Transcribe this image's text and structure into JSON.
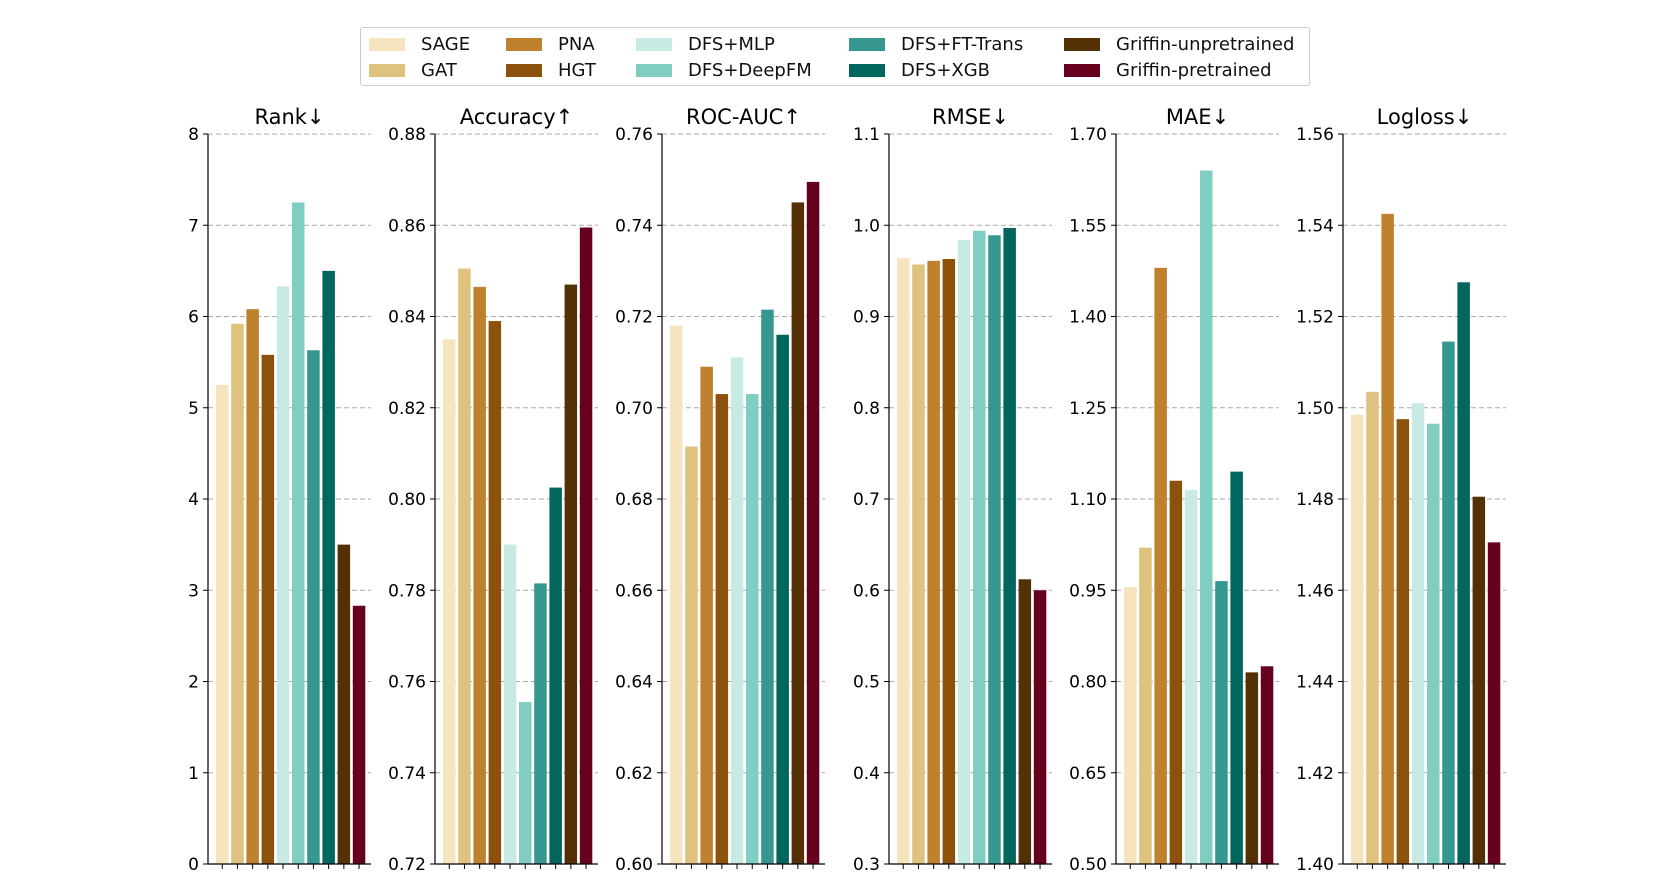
{
  "legend": {
    "items": [
      {
        "label": "SAGE",
        "color": "#f5e4bd"
      },
      {
        "label": "GAT",
        "color": "#dfc27d"
      },
      {
        "label": "PNA",
        "color": "#bf812d"
      },
      {
        "label": "HGT",
        "color": "#8c510a"
      },
      {
        "label": "DFS+MLP",
        "color": "#c7eae5"
      },
      {
        "label": "DFS+DeepFM",
        "color": "#80cdc1"
      },
      {
        "label": "DFS+FT-Trans",
        "color": "#35978f"
      },
      {
        "label": "DFS+XGB",
        "color": "#01665e"
      },
      {
        "label": "Griffin-unpretrained",
        "color": "#543005"
      },
      {
        "label": "Griffin-pretrained",
        "color": "#67001f"
      }
    ]
  },
  "chart_data": [
    {
      "type": "bar",
      "title": "Rank↓",
      "ylim": [
        0,
        8
      ],
      "ticks": [
        "0",
        "1",
        "2",
        "3",
        "4",
        "5",
        "6",
        "7",
        "8"
      ],
      "categories": [
        "SAGE",
        "GAT",
        "PNA",
        "HGT",
        "DFS+MLP",
        "DFS+DeepFM",
        "DFS+FT-Trans",
        "DFS+XGB",
        "Griffin-unpretrained",
        "Griffin-pretrained"
      ],
      "values": [
        5.25,
        5.92,
        6.08,
        5.58,
        6.33,
        7.25,
        5.63,
        6.5,
        3.5,
        2.83
      ]
    },
    {
      "type": "bar",
      "title": "Accuracy↑",
      "ylim": [
        0.72,
        0.88
      ],
      "ticks": [
        "0.72",
        "0.74",
        "0.76",
        "0.78",
        "0.80",
        "0.82",
        "0.84",
        "0.86",
        "0.88"
      ],
      "categories": [
        "SAGE",
        "GAT",
        "PNA",
        "HGT",
        "DFS+MLP",
        "DFS+DeepFM",
        "DFS+FT-Trans",
        "DFS+XGB",
        "Griffin-unpretrained",
        "Griffin-pretrained"
      ],
      "values": [
        0.835,
        0.8505,
        0.8465,
        0.839,
        0.79,
        0.7555,
        0.7815,
        0.8025,
        0.847,
        0.8595
      ]
    },
    {
      "type": "bar",
      "title": "ROC-AUC↑",
      "ylim": [
        0.6,
        0.76
      ],
      "ticks": [
        "0.60",
        "0.62",
        "0.64",
        "0.66",
        "0.68",
        "0.70",
        "0.72",
        "0.74",
        "0.76"
      ],
      "categories": [
        "SAGE",
        "GAT",
        "PNA",
        "HGT",
        "DFS+MLP",
        "DFS+DeepFM",
        "DFS+FT-Trans",
        "DFS+XGB",
        "Griffin-unpretrained",
        "Griffin-pretrained"
      ],
      "values": [
        0.718,
        0.6915,
        0.709,
        0.703,
        0.711,
        0.703,
        0.7215,
        0.716,
        0.745,
        0.7495
      ]
    },
    {
      "type": "bar",
      "title": "RMSE↓",
      "ylim": [
        0.3,
        1.1
      ],
      "ticks": [
        "0.3",
        "0.4",
        "0.5",
        "0.6",
        "0.7",
        "0.8",
        "0.9",
        "1.0",
        "1.1"
      ],
      "categories": [
        "SAGE",
        "GAT",
        "PNA",
        "HGT",
        "DFS+MLP",
        "DFS+DeepFM",
        "DFS+FT-Trans",
        "DFS+XGB",
        "Griffin-unpretrained",
        "Griffin-pretrained"
      ],
      "values": [
        0.964,
        0.957,
        0.961,
        0.963,
        0.984,
        0.994,
        0.989,
        0.997,
        0.612,
        0.6
      ]
    },
    {
      "type": "bar",
      "title": "MAE↓",
      "ylim": [
        0.5,
        1.7
      ],
      "ticks": [
        "0.50",
        "0.65",
        "0.80",
        "0.95",
        "1.10",
        "1.25",
        "1.40",
        "1.55",
        "1.70"
      ],
      "categories": [
        "SAGE",
        "GAT",
        "PNA",
        "HGT",
        "DFS+MLP",
        "DFS+DeepFM",
        "DFS+FT-Trans",
        "DFS+XGB",
        "Griffin-unpretrained",
        "Griffin-pretrained"
      ],
      "values": [
        0.955,
        1.02,
        1.48,
        1.13,
        1.115,
        1.64,
        0.965,
        1.145,
        0.815,
        0.825
      ]
    },
    {
      "type": "bar",
      "title": "Logloss↓",
      "ylim": [
        1.4,
        1.56
      ],
      "ticks": [
        "1.40",
        "1.42",
        "1.44",
        "1.46",
        "1.48",
        "1.50",
        "1.52",
        "1.54",
        "1.56"
      ],
      "categories": [
        "SAGE",
        "GAT",
        "PNA",
        "HGT",
        "DFS+MLP",
        "DFS+DeepFM",
        "DFS+FT-Trans",
        "DFS+XGB",
        "Griffin-unpretrained",
        "Griffin-pretrained"
      ],
      "values": [
        1.4985,
        1.5035,
        1.5425,
        1.4975,
        1.501,
        1.4965,
        1.5145,
        1.5275,
        1.4805,
        1.4705
      ]
    }
  ]
}
